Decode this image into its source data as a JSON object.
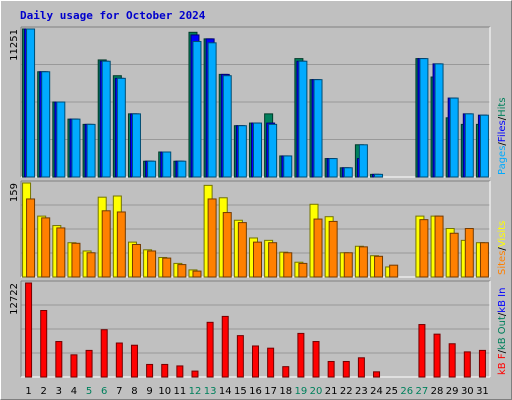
{
  "title": "Daily usage for October 2024",
  "colors": {
    "background": "#c0c0c0",
    "grid": "#999999",
    "title": "#0000cc",
    "hits": "#00805c",
    "files": "#0000ff",
    "pages": "#00aaff",
    "visits": "#ffff00",
    "sites": "#ff8000",
    "kbytes": "#ff0000",
    "weekend_day": "#00805c",
    "weekday": "#000000"
  },
  "chart_data": [
    {
      "type": "bar",
      "panel": "top",
      "y_max_label": "11251",
      "ylim": [
        0,
        11251
      ],
      "grid": true,
      "categories": [
        "1",
        "2",
        "3",
        "4",
        "5",
        "6",
        "7",
        "8",
        "9",
        "10",
        "11",
        "12",
        "13",
        "14",
        "15",
        "16",
        "17",
        "18",
        "19",
        "20",
        "21",
        "22",
        "23",
        "24",
        "25",
        "26",
        "27",
        "28",
        "29",
        "30",
        "31"
      ],
      "weekend_days": [
        "5",
        "6",
        "12",
        "13",
        "19",
        "20",
        "26",
        "27"
      ],
      "legend": [
        {
          "label": "Hits",
          "color": "#00805c"
        },
        {
          "label": "/",
          "color": "#000000"
        },
        {
          "label": "Files",
          "color": "#0000ff"
        },
        {
          "label": "/",
          "color": "#000000"
        },
        {
          "label": "Pages",
          "color": "#00aaff"
        }
      ],
      "series": [
        {
          "name": "Hits",
          "values": [
            11251,
            8000,
            5700,
            4400,
            4000,
            8900,
            7700,
            4800,
            1200,
            1900,
            1200,
            11000,
            10500,
            7800,
            3900,
            4100,
            4800,
            1600,
            9000,
            7400,
            1400,
            700,
            2450,
            200,
            0,
            0,
            9000,
            7600,
            4500,
            4000,
            4000
          ]
        },
        {
          "name": "Files",
          "values": [
            11251,
            8000,
            5700,
            4400,
            4000,
            8800,
            7500,
            4800,
            1200,
            1900,
            1200,
            10800,
            10500,
            7800,
            3900,
            4100,
            4100,
            1600,
            8800,
            7400,
            1400,
            700,
            1400,
            200,
            0,
            0,
            9000,
            8600,
            6000,
            4800,
            4700
          ]
        },
        {
          "name": "Pages",
          "values": [
            11251,
            8000,
            5700,
            4400,
            4000,
            8800,
            7500,
            4800,
            1200,
            1900,
            1200,
            10300,
            10200,
            7700,
            3900,
            4100,
            4000,
            1600,
            8800,
            7400,
            1400,
            700,
            2450,
            200,
            0,
            0,
            9000,
            8600,
            6000,
            4800,
            4700
          ]
        }
      ]
    },
    {
      "type": "bar",
      "panel": "middle",
      "y_max_label": "159",
      "ylim": [
        0,
        159
      ],
      "grid": true,
      "legend": [
        {
          "label": "Visits",
          "color": "#ffff00"
        },
        {
          "label": "/",
          "color": "#000000"
        },
        {
          "label": "Sites",
          "color": "#ff8000"
        }
      ],
      "series": [
        {
          "name": "Visits",
          "values": [
            159,
            103,
            87,
            58,
            44,
            135,
            137,
            59,
            46,
            33,
            23,
            12,
            155,
            134,
            96,
            66,
            62,
            42,
            25,
            123,
            102,
            41,
            52,
            36,
            17,
            0,
            103,
            103,
            82,
            62,
            58
          ]
        },
        {
          "name": "Sites",
          "values": [
            132,
            100,
            83,
            57,
            41,
            112,
            110,
            55,
            44,
            32,
            21,
            10,
            132,
            109,
            92,
            59,
            58,
            41,
            23,
            98,
            94,
            41,
            51,
            35,
            20,
            0,
            97,
            103,
            74,
            82,
            58
          ]
        }
      ]
    },
    {
      "type": "bar",
      "panel": "bottom",
      "y_max_label": "12722",
      "ylim": [
        0,
        12722
      ],
      "grid": true,
      "legend": [
        {
          "label": "kB In",
          "color": "#0000ff"
        },
        {
          "label": "/",
          "color": "#000000"
        },
        {
          "label": "kB Out",
          "color": "#00805c"
        },
        {
          "label": "/",
          "color": "#000000"
        },
        {
          "label": "kB F",
          "color": "#ff0000"
        }
      ],
      "series": [
        {
          "name": "kB F",
          "values": [
            12722,
            9000,
            4800,
            3000,
            3600,
            6400,
            4600,
            4300,
            1700,
            1700,
            1500,
            800,
            7400,
            8200,
            5600,
            4200,
            3900,
            1400,
            5900,
            4800,
            2100,
            2100,
            2600,
            700,
            0,
            0,
            7100,
            5800,
            4500,
            3400,
            3600
          ]
        }
      ]
    }
  ]
}
